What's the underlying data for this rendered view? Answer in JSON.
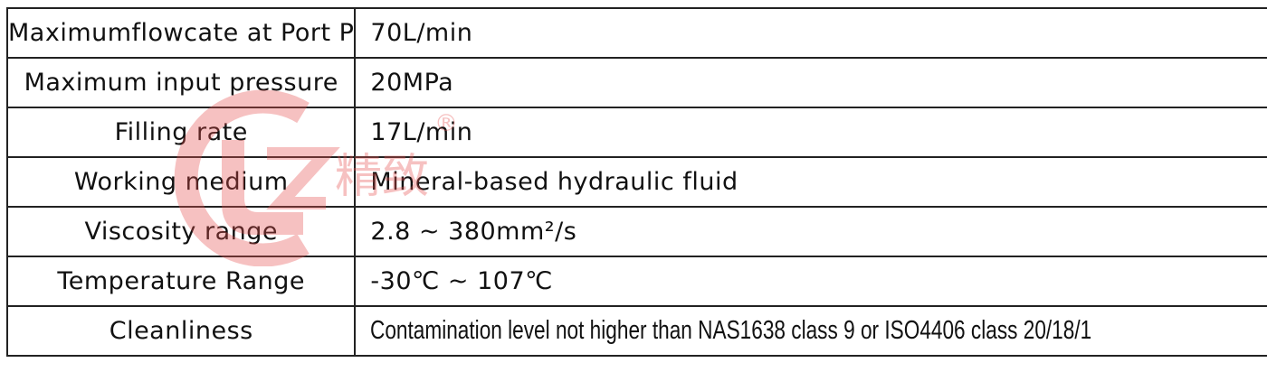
{
  "rows": [
    {
      "label": "Maximumflowcate at Port P",
      "value": "70L/min"
    },
    {
      "label": "Maximum input pressure",
      "value": "20MPa"
    },
    {
      "label": "Filling rate",
      "value": "17L/min"
    },
    {
      "label": "Working medium",
      "value": "Mineral-based hydraulic fluid"
    },
    {
      "label": "Viscosity range",
      "value": "2.8 ~ 380mm²/s"
    },
    {
      "label": "Temperature Range",
      "value": "-30℃ ~ 107℃"
    },
    {
      "label": "Cleanliness",
      "value": "Contamination level not higher than NAS1638 class 9 or ISO4406 class 20/18/1"
    }
  ],
  "watermark": {
    "logo_text": "JZ",
    "brand_text": "精致",
    "registered_mark": "®",
    "color": "#e8504f"
  }
}
